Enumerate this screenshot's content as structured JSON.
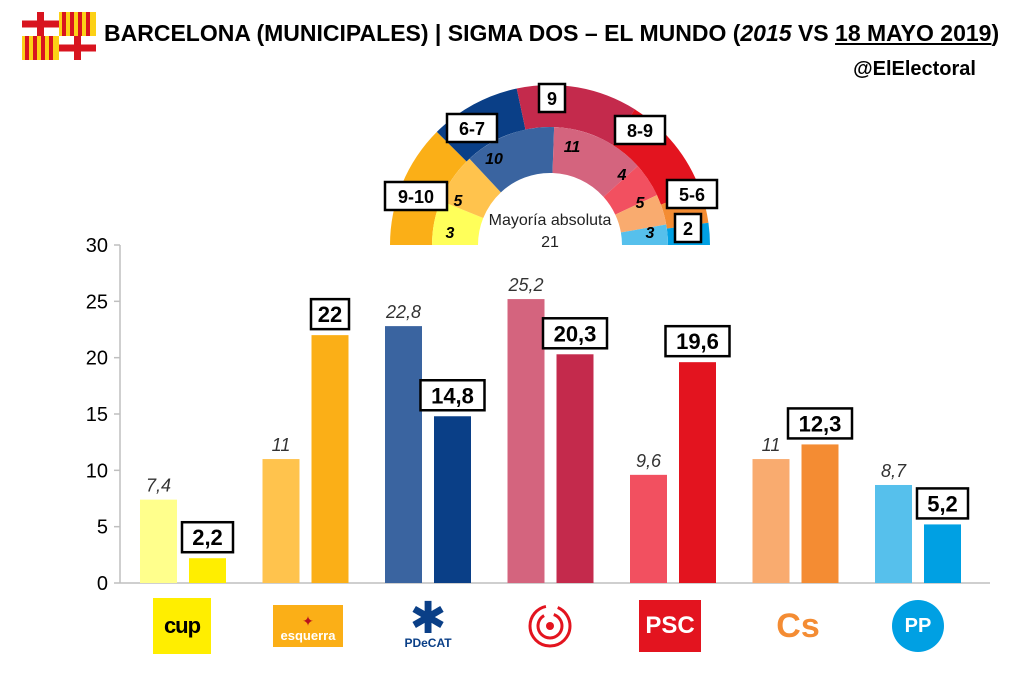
{
  "header": {
    "title_main": "BARCELONA (MUNICIPALES) | SIGMA DOS – EL MUNDO (",
    "title_year_old": "2015",
    "title_vs": " VS ",
    "title_date": "18 MAYO 2019",
    "title_close": ")",
    "handle": "@ElElectoral"
  },
  "colors": {
    "cup_2015": "#ffff8c",
    "cup_2019": "#ffee00",
    "erc_2015": "#ffc34d",
    "erc_2019": "#fbaf17",
    "pdecat_2015": "#3a64a0",
    "pdecat_2019": "#0a3f87",
    "comuns_2015": "#d4647e",
    "comuns_2019": "#c42a4c",
    "psc_2015": "#f25060",
    "psc_2019": "#e3141f",
    "cs_2015": "#f9ab6f",
    "cs_2019": "#f48c33",
    "pp_2015": "#56c0ec",
    "pp_2019": "#00a0e3"
  },
  "chart_data": {
    "type": "bar",
    "categories": [
      "CUP",
      "ERC",
      "PDeCAT",
      "Comuns",
      "PSC",
      "Cs",
      "PP"
    ],
    "series": [
      {
        "values": [
          7.4,
          11,
          22.8,
          25.2,
          9.6,
          11,
          8.7
        ],
        "labels": [
          "7,4",
          "11",
          "22,8",
          "25,2",
          "9,6",
          "11",
          "8,7"
        ]
      },
      {
        "values": [
          2.2,
          22,
          14.8,
          20.3,
          19.6,
          12.3,
          5.2
        ],
        "labels": [
          "2,2",
          "22",
          "14,8",
          "20,3",
          "19,6",
          "12,3",
          "5,2"
        ]
      }
    ],
    "ylim": [
      0,
      30
    ],
    "yticks": [
      "0",
      "5",
      "10",
      "15",
      "20",
      "25",
      "30"
    ]
  },
  "logos": {
    "cup": "cup",
    "esquerra": "esquerra",
    "pdecat": "PDeCAT",
    "psc": "PSC",
    "cs": "Cs",
    "pp": "PP"
  },
  "hemicycle": {
    "majority_label": "Mayoría absoluta",
    "majority_value": "21",
    "outer": [
      {
        "party": "erc",
        "seats": "9-10",
        "color": "#fbaf17"
      },
      {
        "party": "pdecat",
        "seats": "6-7",
        "color": "#0a3f87"
      },
      {
        "party": "comuns",
        "seats": "9",
        "color": "#c42a4c"
      },
      {
        "party": "psc",
        "seats": "8-9",
        "color": "#e3141f"
      },
      {
        "party": "cs",
        "seats": "5-6",
        "color": "#f48c33"
      },
      {
        "party": "pp",
        "seats": "2",
        "color": "#00a0e3"
      }
    ],
    "inner": [
      {
        "party": "cup",
        "seats": "3",
        "color": "#ffff5a"
      },
      {
        "party": "erc",
        "seats": "5",
        "color": "#ffc34d"
      },
      {
        "party": "pdecat",
        "seats": "10",
        "color": "#3a64a0"
      },
      {
        "party": "comuns",
        "seats": "11",
        "color": "#d4647e"
      },
      {
        "party": "psc",
        "seats": "4",
        "color": "#f25060"
      },
      {
        "party": "cs",
        "seats": "5",
        "color": "#f9ab6f"
      },
      {
        "party": "pp",
        "seats": "3",
        "color": "#56c0ec"
      }
    ]
  }
}
